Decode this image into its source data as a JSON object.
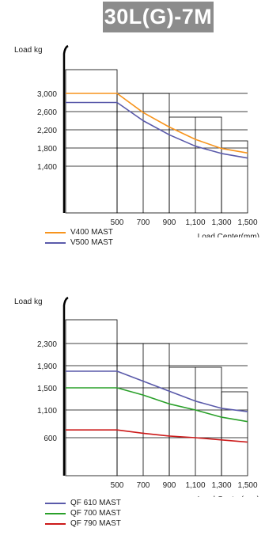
{
  "model_title": "30L(G)-7M",
  "chart_data": [
    {
      "type": "line",
      "ylabel": "Load  kg",
      "xlabel": "Load Center(mm)",
      "x_ticks": [
        "500",
        "700",
        "900",
        "1,100",
        "1,300",
        "1,500"
      ],
      "y_ticks": [
        "3,000",
        "2,600",
        "2,200",
        "1,800",
        "1,400"
      ],
      "grid": "step",
      "series": [
        {
          "name": "V400 MAST",
          "color": "#f7941d",
          "x": [
            0,
            500,
            700,
            900,
            1100,
            1300,
            1500
          ],
          "y": [
            3000,
            3000,
            2580,
            2260,
            1990,
            1790,
            1690
          ]
        },
        {
          "name": "V500 MAST",
          "color": "#5a5aaa",
          "x": [
            0,
            500,
            700,
            900,
            1100,
            1300,
            1500
          ],
          "y": [
            2800,
            2800,
            2400,
            2090,
            1840,
            1680,
            1580
          ]
        }
      ]
    },
    {
      "type": "line",
      "ylabel": "Load  kg",
      "xlabel": "Load Center(mm)",
      "x_ticks": [
        "500",
        "700",
        "900",
        "1,100",
        "1,300",
        "1,500"
      ],
      "y_ticks": [
        "2,300",
        "1,900",
        "1,500",
        "1,100",
        "600"
      ],
      "grid": "step",
      "series": [
        {
          "name": "QF 610 MAST",
          "color": "#5a5aaa",
          "x": [
            0,
            500,
            700,
            900,
            1100,
            1300,
            1500
          ],
          "y": [
            1800,
            1800,
            1620,
            1440,
            1260,
            1130,
            1070
          ]
        },
        {
          "name": "QF 700 MAST",
          "color": "#2aa02a",
          "x": [
            0,
            500,
            700,
            900,
            1100,
            1300,
            1500
          ],
          "y": [
            1500,
            1500,
            1370,
            1210,
            1100,
            970,
            890
          ]
        },
        {
          "name": "QF 790 MAST",
          "color": "#cc1a1a",
          "x": [
            0,
            500,
            700,
            900,
            1100,
            1300,
            1500
          ],
          "y": [
            740,
            740,
            680,
            630,
            600,
            560,
            520
          ]
        }
      ]
    }
  ]
}
